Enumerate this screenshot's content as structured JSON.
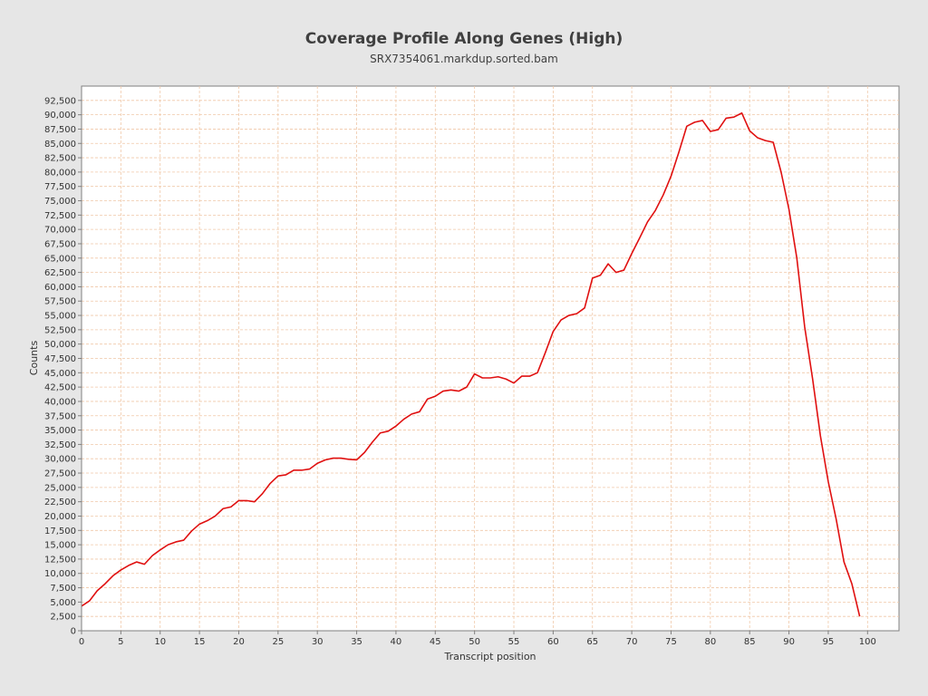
{
  "chart_data": {
    "type": "line",
    "title": "Coverage Profile Along Genes (High)",
    "subtitle": "SRX7354061.markdup.sorted.bam",
    "xlabel": "Transcript position",
    "ylabel": "Counts",
    "xlim": [
      0,
      104
    ],
    "ylim": [
      0,
      95000
    ],
    "x_ticks": [
      0,
      5,
      10,
      15,
      20,
      25,
      30,
      35,
      40,
      45,
      50,
      55,
      60,
      65,
      70,
      75,
      80,
      85,
      90,
      95,
      100
    ],
    "y_ticks": [
      0,
      2500,
      5000,
      7500,
      10000,
      12500,
      15000,
      17500,
      20000,
      22500,
      25000,
      27500,
      30000,
      32500,
      35000,
      37500,
      40000,
      42500,
      45000,
      47500,
      50000,
      52500,
      55000,
      57500,
      60000,
      62500,
      65000,
      67500,
      70000,
      72500,
      75000,
      77500,
      80000,
      82500,
      85000,
      87500,
      90000,
      92500
    ],
    "x_tick_labels": [
      "0",
      "5",
      "10",
      "15",
      "20",
      "25",
      "30",
      "35",
      "40",
      "45",
      "50",
      "55",
      "60",
      "65",
      "70",
      "75",
      "80",
      "85",
      "90",
      "95",
      "100"
    ],
    "y_tick_labels": [
      "0",
      "2,500",
      "5,000",
      "7,500",
      "10,000",
      "12,500",
      "15,000",
      "17,500",
      "20,000",
      "22,500",
      "25,000",
      "27,500",
      "30,000",
      "32,500",
      "35,000",
      "37,500",
      "40,000",
      "42,500",
      "45,000",
      "47,500",
      "50,000",
      "52,500",
      "55,000",
      "57,500",
      "60,000",
      "62,500",
      "65,000",
      "67,500",
      "70,000",
      "72,500",
      "75,000",
      "77,500",
      "80,000",
      "82,500",
      "85,000",
      "87,500",
      "90,000",
      "92,500"
    ],
    "grid": true,
    "legend": "none",
    "series": [
      {
        "color": "#e01010",
        "x": [
          0,
          1,
          2,
          3,
          4,
          5,
          6,
          7,
          8,
          9,
          10,
          11,
          12,
          13,
          14,
          15,
          16,
          17,
          18,
          19,
          20,
          21,
          22,
          23,
          24,
          25,
          26,
          27,
          28,
          29,
          30,
          31,
          32,
          33,
          34,
          35,
          36,
          37,
          38,
          39,
          40,
          41,
          42,
          43,
          44,
          45,
          46,
          47,
          48,
          49,
          50,
          51,
          52,
          53,
          54,
          55,
          56,
          57,
          58,
          59,
          60,
          61,
          62,
          63,
          64,
          65,
          66,
          67,
          68,
          69,
          70,
          71,
          72,
          73,
          74,
          75,
          76,
          77,
          78,
          79,
          80,
          81,
          82,
          83,
          84,
          85,
          86,
          87,
          88,
          89,
          90,
          91,
          92,
          93,
          94,
          95,
          96,
          97,
          98,
          99
        ],
        "values": [
          4300,
          5200,
          7000,
          8200,
          9600,
          10600,
          11400,
          12000,
          11600,
          13100,
          14100,
          15000,
          15500,
          15800,
          17400,
          18600,
          19200,
          20000,
          21300,
          21600,
          22700,
          22700,
          22500,
          23900,
          25700,
          27000,
          27200,
          28000,
          28000,
          28200,
          29200,
          29800,
          30100,
          30100,
          29900,
          29800,
          31100,
          32900,
          34500,
          34800,
          35700,
          36900,
          37800,
          38200,
          40400,
          40900,
          41800,
          42000,
          41800,
          42500,
          44800,
          44100,
          44100,
          44300,
          43900,
          43200,
          44400,
          44400,
          45000,
          48500,
          52200,
          54200,
          55000,
          55300,
          56300,
          61500,
          62000,
          64000,
          62500,
          62900,
          65800,
          68500,
          71300,
          73300,
          76000,
          79300,
          83500,
          88000,
          88700,
          89000,
          87100,
          87400,
          89400,
          89600,
          90300,
          87200,
          86000,
          85500,
          85200,
          80000,
          73500,
          65000,
          53000,
          44000,
          34000,
          26000,
          19500,
          12000,
          8200,
          2500
        ]
      }
    ]
  }
}
